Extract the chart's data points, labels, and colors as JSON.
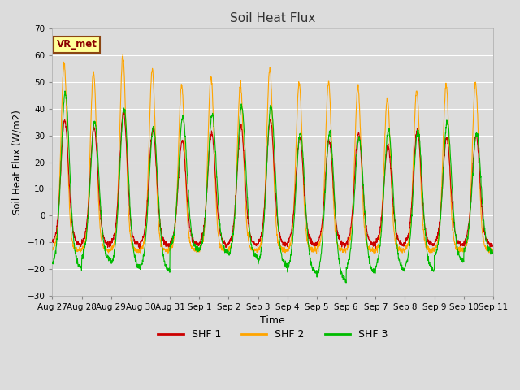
{
  "title": "Soil Heat Flux",
  "xlabel": "Time",
  "ylabel": "Soil Heat Flux (W/m2)",
  "ylim": [
    -30,
    70
  ],
  "yticks": [
    -30,
    -20,
    -10,
    0,
    10,
    20,
    30,
    40,
    50,
    60,
    70
  ],
  "plot_bg_color": "#dcdcdc",
  "grid_color": "#ffffff",
  "colors": {
    "SHF 1": "#cc0000",
    "SHF 2": "#ffa500",
    "SHF 3": "#00bb00"
  },
  "xtick_labels": [
    "Aug 27",
    "Aug 28",
    "Aug 29",
    "Aug 30",
    "Aug 31",
    "Sep 1",
    "Sep 2",
    "Sep 3",
    "Sep 4",
    "Sep 5",
    "Sep 6",
    "Sep 7",
    "Sep 8",
    "Sep 9",
    "Sep 10",
    "Sep 11"
  ],
  "n_days": 15,
  "annotation_text": "VR_met",
  "annotation_bbox_facecolor": "#ffff99",
  "annotation_bbox_edgecolor": "#8B4513",
  "shf2_day_peaks": [
    57,
    54,
    60,
    55,
    49,
    52,
    49,
    55,
    50,
    50,
    48,
    44,
    47,
    49,
    50,
    50
  ],
  "shf1_day_peaks": [
    36,
    33,
    39,
    32,
    28,
    31,
    33,
    36,
    29,
    28,
    31,
    26,
    32,
    29,
    30,
    32
  ],
  "shf3_day_peaks": [
    46,
    35,
    40,
    33,
    37,
    38,
    41,
    41,
    31,
    31,
    29,
    32,
    32,
    35,
    31,
    37
  ],
  "shf1_night": -11,
  "shf2_night": -13,
  "shf3_night": -17,
  "shf3_night_deep": [
    -20,
    -17,
    -20,
    -21,
    -13,
    -14,
    -16,
    -19,
    -22,
    -25,
    -22,
    -21,
    -21,
    -17,
    -14,
    -15
  ]
}
